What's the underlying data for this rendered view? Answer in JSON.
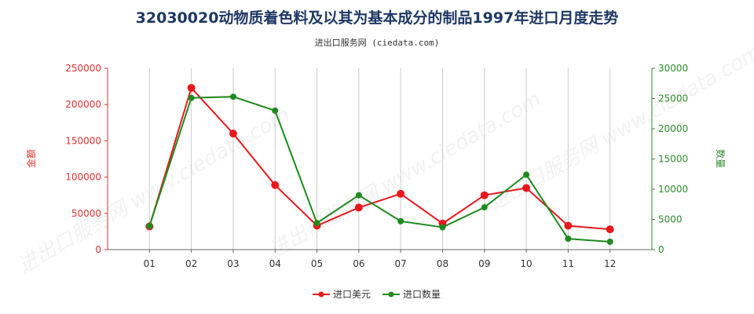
{
  "chart_data": {
    "type": "line",
    "title": "32030020动物质着色料及以其为基本成分的制品1997年进口月度走势",
    "subtitle": "进出口服务网 (ciedata.com)",
    "watermark": "进出口服务网 www.ciedata.com",
    "categories": [
      "01",
      "02",
      "03",
      "04",
      "05",
      "06",
      "07",
      "08",
      "09",
      "10",
      "11",
      "12"
    ],
    "y_left": {
      "label": "金额",
      "min": 0,
      "max": 250000,
      "ticks": [
        0,
        50000,
        100000,
        150000,
        200000,
        250000
      ],
      "tick_labels": [
        "0",
        "50000",
        "100000",
        "150000",
        "200000",
        "250000"
      ],
      "color": "#e03030"
    },
    "y_right": {
      "label": "数量",
      "min": 0,
      "max": 30000,
      "ticks": [
        0,
        5000,
        10000,
        15000,
        20000,
        25000,
        30000
      ],
      "tick_labels": [
        "0",
        "5000",
        "10000",
        "15000",
        "20000",
        "25000",
        "30000"
      ],
      "color": "#2e8b2e"
    },
    "series": [
      {
        "name": "进口美元",
        "axis": "left",
        "color": "#e8191e",
        "values": [
          32000,
          223000,
          160000,
          89000,
          33000,
          58000,
          77000,
          36000,
          75000,
          85000,
          33000,
          28000
        ]
      },
      {
        "name": "进口数量",
        "axis": "right",
        "color": "#1e8a1e",
        "values": [
          3900,
          25100,
          25300,
          23000,
          4400,
          9000,
          4700,
          3700,
          7000,
          12400,
          1800,
          1300
        ]
      }
    ],
    "grid": "vertical",
    "legend_position": "bottom-center"
  }
}
